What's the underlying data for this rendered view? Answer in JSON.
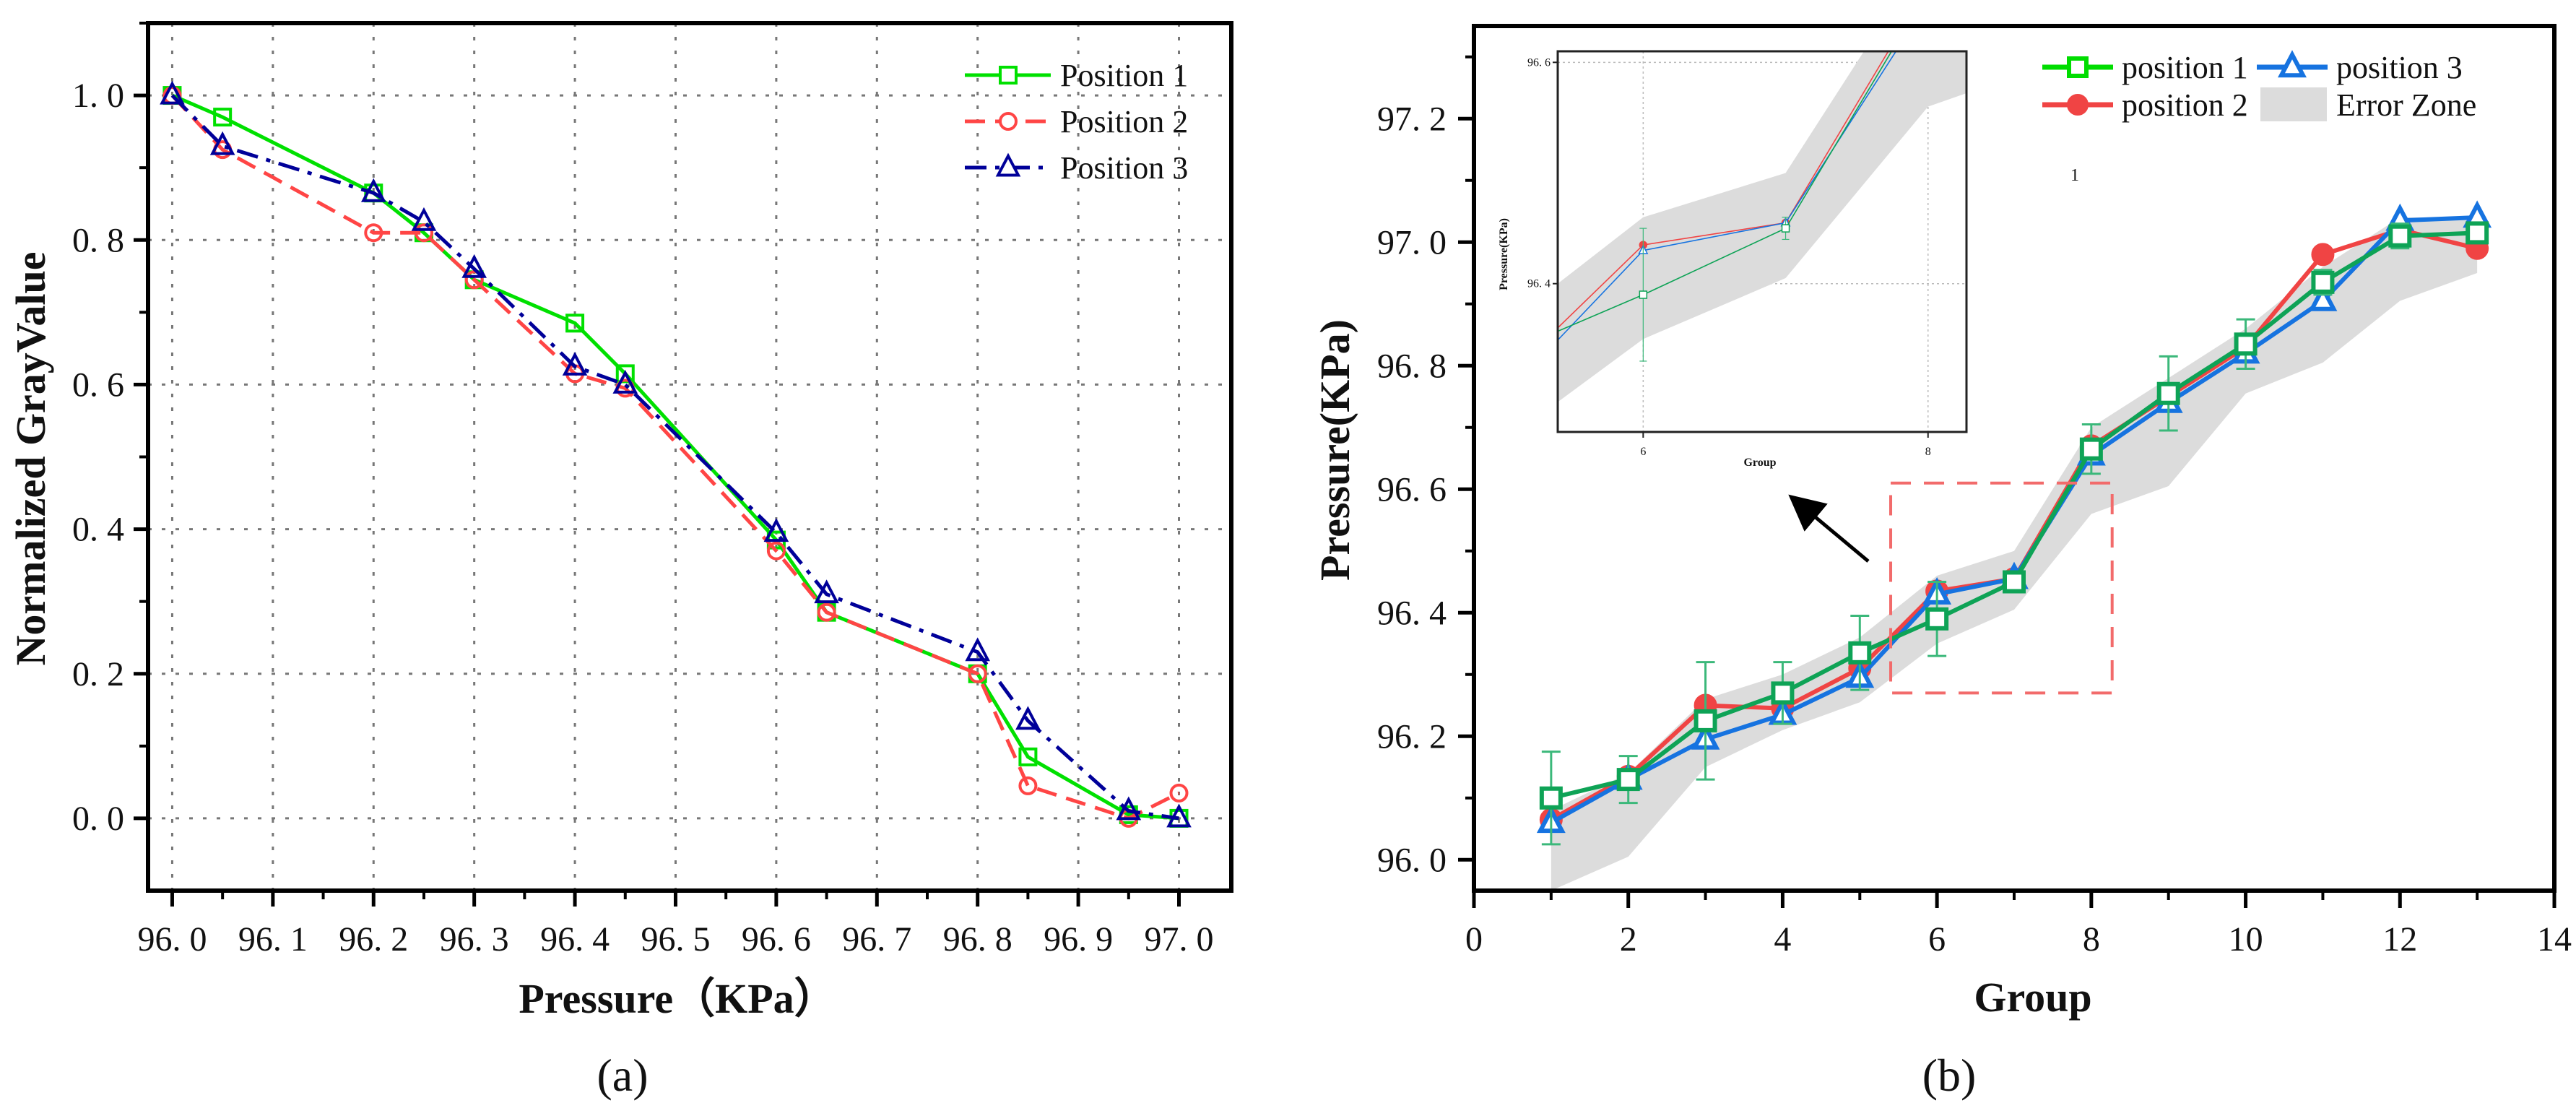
{
  "chart_data": [
    {
      "type": "line",
      "panel_label": "(a)",
      "xlabel": "Pressure（KPa）",
      "ylabel": "Normalized GrayValue",
      "xlim": [
        95.976,
        97.052
      ],
      "ylim": [
        -0.1,
        1.1
      ],
      "xticks": [
        96.0,
        96.1,
        96.2,
        96.3,
        96.4,
        96.5,
        96.6,
        96.7,
        96.8,
        96.9,
        97.0
      ],
      "xtick_labels": [
        "96. 0",
        "96. 1",
        "96. 2",
        "96. 3",
        "96. 4",
        "96. 5",
        "96. 6",
        "96. 7",
        "96. 8",
        "96. 9",
        "97. 0"
      ],
      "yticks": [
        0.0,
        0.2,
        0.4,
        0.6,
        0.8,
        1.0
      ],
      "ytick_labels": [
        "0. 0",
        "0. 2",
        "0. 4",
        "0. 6",
        "0. 8",
        "1. 0"
      ],
      "grid": true,
      "legend_position": "top-right",
      "x": [
        96.0,
        96.05,
        96.2,
        96.25,
        96.3,
        96.4,
        96.45,
        96.6,
        96.65,
        96.8,
        96.85,
        96.95,
        97.0
      ],
      "series": [
        {
          "name": "Position 1",
          "color": "#00e000",
          "marker": "square",
          "dash": "solid",
          "values": [
            1.0,
            0.97,
            0.865,
            0.81,
            0.745,
            0.685,
            0.615,
            0.385,
            0.285,
            0.2,
            0.085,
            0.005,
            0.0
          ]
        },
        {
          "name": "Position 2",
          "color": "#ff4545",
          "marker": "circle",
          "dash": "dashed",
          "values": [
            1.0,
            0.925,
            0.81,
            0.81,
            0.745,
            0.615,
            0.595,
            0.37,
            0.285,
            0.2,
            0.045,
            0.0,
            0.035
          ]
        },
        {
          "name": "Position 3",
          "color": "#000099",
          "marker": "triangle",
          "dash": "dashdot",
          "values": [
            1.0,
            0.93,
            0.865,
            0.825,
            0.76,
            0.625,
            0.6,
            0.395,
            0.31,
            0.23,
            0.135,
            0.01,
            0.0
          ]
        }
      ]
    },
    {
      "type": "line",
      "panel_label": "(b)",
      "xlabel": "Group",
      "ylabel": "Pressure(KPa)",
      "xlim": [
        0,
        14
      ],
      "ylim": [
        95.95,
        97.35
      ],
      "xticks": [
        0,
        2,
        4,
        6,
        8,
        10,
        12,
        14
      ],
      "xtick_labels": [
        "0",
        "2",
        "4",
        "6",
        "8",
        "10",
        "12",
        "14"
      ],
      "yticks": [
        96.0,
        96.2,
        96.4,
        96.6,
        96.8,
        97.0,
        97.2
      ],
      "ytick_labels": [
        "96. 0",
        "96. 2",
        "96. 4",
        "96. 6",
        "96. 8",
        "97. 0",
        "97. 2"
      ],
      "grid": false,
      "legend_position": "top-right",
      "annotation": "1",
      "x": [
        1,
        2,
        3,
        4,
        5,
        6,
        7,
        8,
        9,
        10,
        11,
        12,
        13
      ],
      "series": [
        {
          "name": "position 1",
          "color": "#0ea356",
          "legend_color": "#00dd00",
          "marker": "square",
          "values": [
            96.1,
            96.13,
            96.225,
            96.27,
            96.335,
            96.39,
            96.45,
            96.665,
            96.755,
            96.835,
            96.935,
            97.01,
            97.015
          ],
          "errors": [
            0.075,
            0.038,
            0.095,
            0.05,
            0.06,
            0.06,
            0.01,
            0.04,
            0.06,
            0.04,
            0.02,
            0.02,
            0.01
          ]
        },
        {
          "name": "position 2",
          "color": "#f04444",
          "marker": "circle",
          "values": [
            96.065,
            96.135,
            96.25,
            96.245,
            96.31,
            96.435,
            96.455,
            96.67,
            96.75,
            96.83,
            96.98,
            97.02,
            96.99
          ]
        },
        {
          "name": "position 3",
          "color": "#1673e0",
          "marker": "triangle",
          "values": [
            96.06,
            96.13,
            96.195,
            96.235,
            96.295,
            96.43,
            96.455,
            96.655,
            96.74,
            96.82,
            96.905,
            97.035,
            97.04
          ]
        }
      ],
      "error_zone": {
        "name": "Error Zone",
        "color": "#dcdcdc",
        "lower": [
          95.95,
          96.005,
          96.15,
          96.21,
          96.255,
          96.35,
          96.405,
          96.56,
          96.605,
          96.755,
          96.805,
          96.905,
          96.95
        ],
        "upper": [
          96.08,
          96.14,
          96.26,
          96.3,
          96.36,
          96.46,
          96.5,
          96.7,
          96.78,
          96.86,
          96.96,
          97.04,
          97.04
        ]
      },
      "zoom_region": {
        "xlim": [
          5.4,
          8.27
        ],
        "ylim": [
          96.27,
          96.61
        ]
      },
      "inset": {
        "xlabel": "Group",
        "ylabel": "Pressure(KPa)",
        "xlim": [
          5.4,
          8.27
        ],
        "ylim": [
          96.266,
          96.61
        ],
        "xticks": [
          6,
          8
        ],
        "xtick_labels": [
          "6",
          "8"
        ],
        "yticks": [
          96.4,
          96.6
        ],
        "ytick_labels": [
          "96. 4",
          "96. 6"
        ]
      }
    }
  ]
}
